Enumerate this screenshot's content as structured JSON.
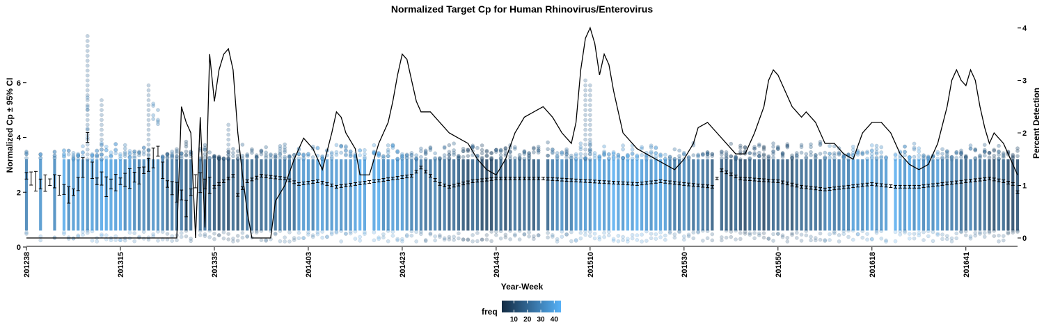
{
  "chart_data": {
    "type": "scatter",
    "title": "Normalized Target Cp for Human Rhinovirus/Enterovirus",
    "xlabel": "Year-Week",
    "ylabel": "Normalized Cp ± 95% CI",
    "y2label": "Percent Detection",
    "x_tick_labels": [
      "201238",
      "201315",
      "201335",
      "201403",
      "201423",
      "201443",
      "201510",
      "201530",
      "201550",
      "201618",
      "201641"
    ],
    "x_tick_index": [
      0,
      20,
      40,
      60,
      80,
      100,
      120,
      140,
      160,
      180,
      200
    ],
    "n_weeks": 212,
    "ylim": [
      0,
      8
    ],
    "yticks": [
      0,
      2,
      4,
      6
    ],
    "y2lim": [
      0,
      4
    ],
    "y2ticks": [
      0,
      1,
      2,
      3,
      4
    ],
    "grid": false,
    "legend": {
      "title": "freq",
      "position": "bottom",
      "ticks": [
        10,
        20,
        30,
        40
      ],
      "range": [
        1,
        45
      ],
      "color_low": "#132B43",
      "color_high": "#56B1F7"
    },
    "percent_detection_keypoints": [
      [
        0,
        0
      ],
      [
        32,
        0
      ],
      [
        33,
        2.5
      ],
      [
        34,
        2.2
      ],
      [
        35,
        2.0
      ],
      [
        36,
        0
      ],
      [
        37,
        2.3
      ],
      [
        38,
        0.2
      ],
      [
        39,
        3.5
      ],
      [
        40,
        2.6
      ],
      [
        41,
        3.2
      ],
      [
        42,
        3.5
      ],
      [
        43,
        3.6
      ],
      [
        44,
        3.2
      ],
      [
        45,
        2.0
      ],
      [
        46,
        1.2
      ],
      [
        47,
        0.5
      ],
      [
        48,
        0
      ],
      [
        52,
        0
      ],
      [
        53,
        0.7
      ],
      [
        55,
        1.0
      ],
      [
        57,
        1.5
      ],
      [
        59,
        1.9
      ],
      [
        61,
        1.7
      ],
      [
        63,
        1.3
      ],
      [
        65,
        2.0
      ],
      [
        66,
        2.4
      ],
      [
        67,
        2.3
      ],
      [
        68,
        2.0
      ],
      [
        70,
        1.7
      ],
      [
        71,
        1.2
      ],
      [
        73,
        1.2
      ],
      [
        75,
        1.8
      ],
      [
        77,
        2.2
      ],
      [
        78,
        2.6
      ],
      [
        79,
        3.1
      ],
      [
        80,
        3.5
      ],
      [
        81,
        3.4
      ],
      [
        82,
        3.0
      ],
      [
        83,
        2.6
      ],
      [
        84,
        2.4
      ],
      [
        86,
        2.4
      ],
      [
        88,
        2.2
      ],
      [
        90,
        2.0
      ],
      [
        92,
        1.9
      ],
      [
        94,
        1.8
      ],
      [
        96,
        1.5
      ],
      [
        98,
        1.3
      ],
      [
        100,
        1.2
      ],
      [
        102,
        1.5
      ],
      [
        104,
        2.0
      ],
      [
        106,
        2.3
      ],
      [
        108,
        2.4
      ],
      [
        110,
        2.5
      ],
      [
        112,
        2.3
      ],
      [
        114,
        2.0
      ],
      [
        116,
        1.8
      ],
      [
        117,
        2.2
      ],
      [
        118,
        3.2
      ],
      [
        119,
        3.8
      ],
      [
        120,
        4.0
      ],
      [
        121,
        3.7
      ],
      [
        122,
        3.1
      ],
      [
        123,
        3.5
      ],
      [
        124,
        3.3
      ],
      [
        125,
        2.8
      ],
      [
        127,
        2.0
      ],
      [
        130,
        1.7
      ],
      [
        134,
        1.5
      ],
      [
        138,
        1.3
      ],
      [
        140,
        1.5
      ],
      [
        142,
        1.8
      ],
      [
        143,
        2.1
      ],
      [
        145,
        2.2
      ],
      [
        147,
        2.0
      ],
      [
        149,
        1.8
      ],
      [
        151,
        1.6
      ],
      [
        153,
        1.6
      ],
      [
        155,
        2.0
      ],
      [
        157,
        2.5
      ],
      [
        158,
        3.0
      ],
      [
        159,
        3.2
      ],
      [
        160,
        3.1
      ],
      [
        161,
        2.9
      ],
      [
        163,
        2.5
      ],
      [
        165,
        2.3
      ],
      [
        166,
        2.4
      ],
      [
        168,
        2.2
      ],
      [
        170,
        1.8
      ],
      [
        172,
        1.8
      ],
      [
        174,
        1.6
      ],
      [
        176,
        1.5
      ],
      [
        178,
        2.0
      ],
      [
        180,
        2.2
      ],
      [
        182,
        2.2
      ],
      [
        184,
        2.0
      ],
      [
        186,
        1.6
      ],
      [
        188,
        1.4
      ],
      [
        190,
        1.3
      ],
      [
        192,
        1.4
      ],
      [
        194,
        1.8
      ],
      [
        196,
        2.5
      ],
      [
        197,
        3.0
      ],
      [
        198,
        3.2
      ],
      [
        199,
        3.0
      ],
      [
        200,
        2.9
      ],
      [
        201,
        3.2
      ],
      [
        202,
        3.0
      ],
      [
        203,
        2.5
      ],
      [
        204,
        2.1
      ],
      [
        205,
        1.8
      ],
      [
        206,
        2.0
      ],
      [
        207,
        1.9
      ],
      [
        208,
        1.8
      ],
      [
        209,
        1.6
      ],
      [
        210,
        1.4
      ],
      [
        211,
        1.2
      ]
    ],
    "mean_cp_keypoints": [
      [
        0,
        2.6
      ],
      [
        3,
        2.3
      ],
      [
        6,
        2.4
      ],
      [
        8,
        2.1
      ],
      [
        9,
        1.9
      ],
      [
        10,
        2.0
      ],
      [
        11,
        2.3
      ],
      [
        12,
        2.9
      ],
      [
        13,
        4.0
      ],
      [
        14,
        2.8
      ],
      [
        15,
        2.4
      ],
      [
        16,
        2.5
      ],
      [
        17,
        2.2
      ],
      [
        18,
        2.3
      ],
      [
        20,
        2.4
      ],
      [
        22,
        2.5
      ],
      [
        24,
        2.6
      ],
      [
        26,
        3.0
      ],
      [
        28,
        3.5
      ],
      [
        29,
        2.8
      ],
      [
        30,
        2.3
      ],
      [
        32,
        2.0
      ],
      [
        33,
        1.9
      ],
      [
        34,
        1.4
      ],
      [
        35,
        2.0
      ],
      [
        36,
        2.4
      ],
      [
        38,
        2.3
      ],
      [
        40,
        2.2
      ],
      [
        42,
        2.4
      ],
      [
        44,
        2.6
      ],
      [
        45,
        1.9
      ],
      [
        47,
        2.4
      ],
      [
        50,
        2.6
      ],
      [
        55,
        2.5
      ],
      [
        58,
        2.3
      ],
      [
        62,
        2.4
      ],
      [
        66,
        2.2
      ],
      [
        70,
        2.3
      ],
      [
        74,
        2.4
      ],
      [
        78,
        2.5
      ],
      [
        82,
        2.6
      ],
      [
        84,
        2.9
      ],
      [
        86,
        2.6
      ],
      [
        88,
        2.3
      ],
      [
        90,
        2.2
      ],
      [
        95,
        2.4
      ],
      [
        100,
        2.5
      ],
      [
        110,
        2.5
      ],
      [
        120,
        2.4
      ],
      [
        130,
        2.3
      ],
      [
        135,
        2.4
      ],
      [
        140,
        2.3
      ],
      [
        146,
        2.2
      ],
      [
        148,
        2.8
      ],
      [
        152,
        2.5
      ],
      [
        160,
        2.4
      ],
      [
        165,
        2.2
      ],
      [
        170,
        2.1
      ],
      [
        175,
        2.2
      ],
      [
        180,
        2.3
      ],
      [
        185,
        2.2
      ],
      [
        190,
        2.2
      ],
      [
        195,
        2.3
      ],
      [
        200,
        2.4
      ],
      [
        205,
        2.5
      ],
      [
        208,
        2.4
      ],
      [
        210,
        2.3
      ],
      [
        211,
        2.0
      ]
    ]
  }
}
